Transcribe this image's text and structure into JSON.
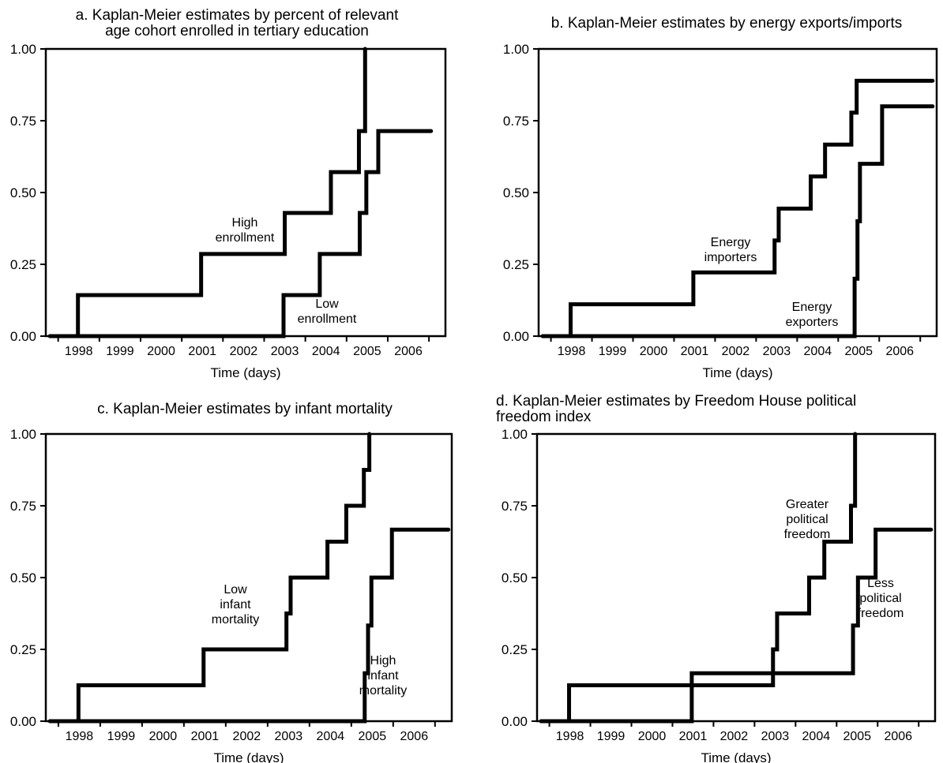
{
  "chart_data": [
    {
      "type": "line",
      "title": "a. Kaplan-Meier estimates by percent of relevant\nage cohort enrolled in tertiary education",
      "xlabel": "Time (days)",
      "ylabel": "",
      "x_tick_labels": [
        "1998",
        "1999",
        "2000",
        "2001",
        "2002",
        "2003",
        "2004",
        "2005",
        "2006"
      ],
      "y_tick_labels": [
        "0.00",
        "0.25",
        "0.50",
        "0.75",
        "1.00"
      ],
      "xlim": [
        1997.2,
        2006.9
      ],
      "ylim": [
        0,
        1
      ],
      "step": true,
      "series": [
        {
          "name": "High\nenrollment",
          "x": [
            1997.3,
            1997.98,
            2000.97,
            2003.0,
            2004.12,
            2004.8,
            2004.95
          ],
          "y": [
            0,
            0.143,
            0.286,
            0.429,
            0.571,
            0.714,
            1.0
          ]
        },
        {
          "name": "Low\nenrollment",
          "x": [
            1997.3,
            2002.97,
            2003.85,
            2004.82,
            2004.98,
            2005.27,
            2006.55
          ],
          "y": [
            0,
            0.143,
            0.286,
            0.429,
            0.571,
            0.714,
            0.714
          ]
        }
      ]
    },
    {
      "type": "line",
      "title": "b. Kaplan-Meier estimates by energy exports/imports",
      "xlabel": "Time (days)",
      "ylabel": "",
      "x_tick_labels": [
        "1998",
        "1999",
        "2000",
        "2001",
        "2002",
        "2003",
        "2004",
        "2005",
        "2006"
      ],
      "y_tick_labels": [
        "0.00",
        "0.25",
        "0.50",
        "0.75",
        "1.00"
      ],
      "xlim": [
        1997.2,
        2006.9
      ],
      "ylim": [
        0,
        1
      ],
      "step": true,
      "series": [
        {
          "name": "Energy\nimporters",
          "x": [
            1997.3,
            1997.98,
            2000.97,
            2002.95,
            2003.05,
            2003.83,
            2004.18,
            2004.82,
            2004.95,
            2006.8
          ],
          "y": [
            0,
            0.111,
            0.222,
            0.333,
            0.444,
            0.556,
            0.667,
            0.778,
            0.889,
            0.889
          ]
        },
        {
          "name": "Energy\nexporters",
          "x": [
            1997.3,
            2004.9,
            2004.97,
            2005.03,
            2005.57,
            2006.8
          ],
          "y": [
            0,
            0.2,
            0.4,
            0.6,
            0.8,
            0.8
          ]
        }
      ]
    },
    {
      "type": "line",
      "title": "c. Kaplan-Meier estimates by infant mortality",
      "xlabel": "Time (days)",
      "ylabel": "",
      "x_tick_labels": [
        "1998",
        "1999",
        "2000",
        "2001",
        "2002",
        "2003",
        "2004",
        "2005",
        "2006"
      ],
      "y_tick_labels": [
        "0.00",
        "0.25",
        "0.50",
        "0.75",
        "1.00"
      ],
      "xlim": [
        1997.2,
        2006.9
      ],
      "ylim": [
        0,
        1
      ],
      "step": true,
      "series": [
        {
          "name": "Low\ninfant\nmortality",
          "x": [
            1997.3,
            1997.98,
            2000.97,
            2002.95,
            2003.05,
            2003.93,
            2004.38,
            2004.8,
            2004.93
          ],
          "y": [
            0,
            0.125,
            0.25,
            0.375,
            0.5,
            0.625,
            0.75,
            0.875,
            1.0
          ]
        },
        {
          "name": "High\ninfant\nmortality",
          "x": [
            1997.3,
            2004.82,
            2004.9,
            2004.98,
            2005.47,
            2006.82
          ],
          "y": [
            0,
            0.167,
            0.333,
            0.5,
            0.667,
            0.667
          ]
        }
      ]
    },
    {
      "type": "line",
      "title": "d. Kaplan-Meier estimates by Freedom House political\nfreedom index",
      "xlabel": "Time (days)",
      "ylabel": "",
      "x_tick_labels": [
        "1998",
        "1999",
        "2000",
        "2001",
        "2002",
        "2003",
        "2004",
        "2005",
        "2006"
      ],
      "y_tick_labels": [
        "0.00",
        "0.25",
        "0.50",
        "0.75",
        "1.00"
      ],
      "xlim": [
        1997.2,
        2006.9
      ],
      "ylim": [
        0,
        1
      ],
      "step": true,
      "series": [
        {
          "name": "Greater\npolitical\nfreedom",
          "x": [
            1997.3,
            1997.98,
            2002.95,
            2003.05,
            2003.83,
            2004.2,
            2004.85,
            2004.95
          ],
          "y": [
            0,
            0.125,
            0.25,
            0.375,
            0.5,
            0.625,
            0.75,
            1.0
          ]
        },
        {
          "name": "Less\npolitical\nfreedom",
          "x": [
            1997.3,
            2000.97,
            2004.9,
            2005.02,
            2005.45,
            2006.8
          ],
          "y": [
            0,
            0.167,
            0.333,
            0.5,
            0.667,
            0.667
          ]
        }
      ]
    }
  ]
}
